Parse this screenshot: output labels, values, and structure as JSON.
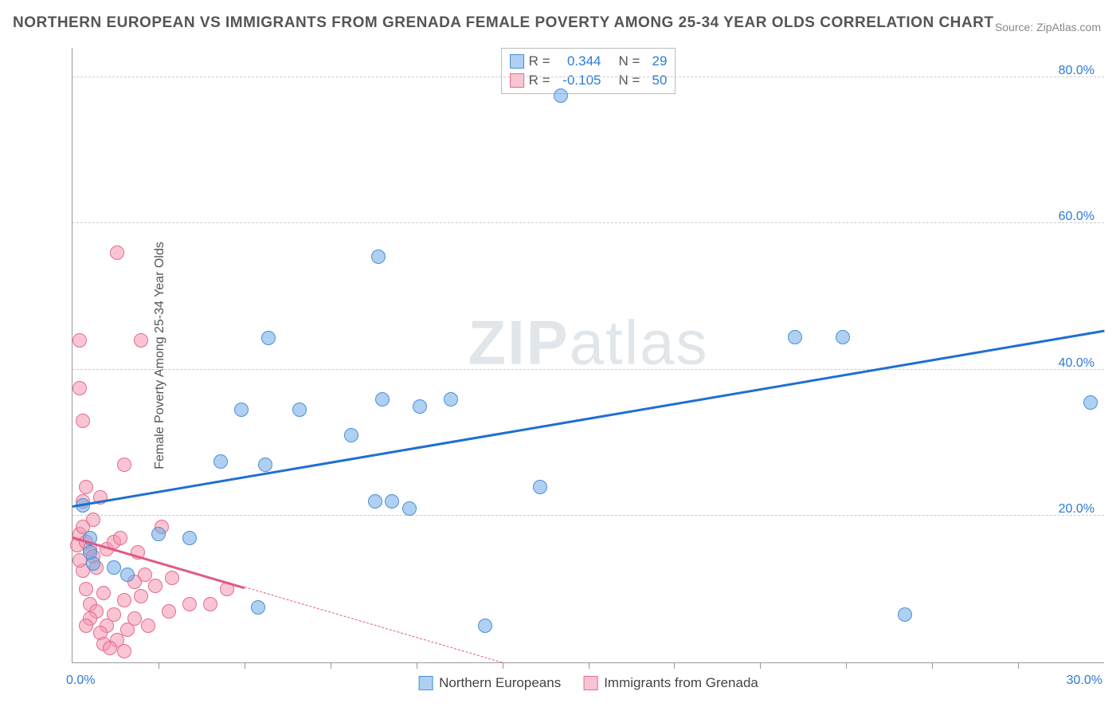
{
  "title": "NORTHERN EUROPEAN VS IMMIGRANTS FROM GRENADA FEMALE POVERTY AMONG 25-34 YEAR OLDS CORRELATION CHART",
  "source_label": "Source: ZipAtlas.com",
  "ylabel": "Female Poverty Among 25-34 Year Olds",
  "watermark": {
    "bold": "ZIP",
    "rest": "atlas"
  },
  "axes": {
    "xmin": 0,
    "xmax": 30,
    "ymin": 0,
    "ymax": 84,
    "x_tick_label_left": "0.0%",
    "x_tick_label_right": "30.0%",
    "x_label_color": "#2b7bd6",
    "y_ticks": [
      {
        "value": 20,
        "label": "20.0%"
      },
      {
        "value": 40,
        "label": "40.0%"
      },
      {
        "value": 60,
        "label": "60.0%"
      },
      {
        "value": 80,
        "label": "80.0%"
      }
    ],
    "y_label_color": "#2b7bd6",
    "grid_color": "#cccccc",
    "x_minor_ticks": [
      2.5,
      5,
      7.5,
      10,
      12.5,
      15,
      17.5,
      20,
      22.5,
      25,
      27.5
    ]
  },
  "series": {
    "blue": {
      "name": "Northern Europeans",
      "fill": "rgba(110,170,230,0.55)",
      "stroke": "#4a90d9",
      "marker_radius": 9,
      "r_label": "R =",
      "r_value": "0.344",
      "n_label": "N =",
      "n_value": "29",
      "trend": {
        "x1": 0,
        "y1": 21.5,
        "x2": 30,
        "y2": 45.5,
        "color": "#1f6fd0",
        "width": 3,
        "dashed_from_x": null
      },
      "points": [
        {
          "x": 14.2,
          "y": 77.5
        },
        {
          "x": 8.9,
          "y": 55.5
        },
        {
          "x": 21.0,
          "y": 44.5
        },
        {
          "x": 22.4,
          "y": 44.5
        },
        {
          "x": 29.6,
          "y": 35.5
        },
        {
          "x": 5.7,
          "y": 44.3
        },
        {
          "x": 9.0,
          "y": 36.0
        },
        {
          "x": 11.0,
          "y": 36.0
        },
        {
          "x": 10.1,
          "y": 35.0
        },
        {
          "x": 8.1,
          "y": 31.0
        },
        {
          "x": 4.9,
          "y": 34.5
        },
        {
          "x": 6.6,
          "y": 34.5
        },
        {
          "x": 4.3,
          "y": 27.5
        },
        {
          "x": 5.6,
          "y": 27.0
        },
        {
          "x": 13.6,
          "y": 24.0
        },
        {
          "x": 8.8,
          "y": 22.0
        },
        {
          "x": 9.3,
          "y": 22.0
        },
        {
          "x": 9.8,
          "y": 21.0
        },
        {
          "x": 24.2,
          "y": 6.5
        },
        {
          "x": 12.0,
          "y": 5.0
        },
        {
          "x": 5.4,
          "y": 7.5
        },
        {
          "x": 3.4,
          "y": 17.0
        },
        {
          "x": 2.5,
          "y": 17.5
        },
        {
          "x": 1.2,
          "y": 13.0
        },
        {
          "x": 1.6,
          "y": 12.0
        },
        {
          "x": 0.6,
          "y": 13.5
        },
        {
          "x": 0.5,
          "y": 15.0
        },
        {
          "x": 0.3,
          "y": 21.5
        },
        {
          "x": 0.5,
          "y": 17.0
        }
      ]
    },
    "pink": {
      "name": "Immigrants from Grenada",
      "fill": "rgba(245,150,175,0.55)",
      "stroke": "#e26b8f",
      "marker_radius": 9,
      "r_label": "R =",
      "r_value": "-0.105",
      "n_label": "N =",
      "n_value": "50",
      "trend": {
        "x1": 0,
        "y1": 17.2,
        "x2": 12.5,
        "y2": 0,
        "color": "#e05a82",
        "width": 3,
        "dashed_from_x": 5.0
      },
      "points": [
        {
          "x": 1.3,
          "y": 56.0
        },
        {
          "x": 0.2,
          "y": 44.0
        },
        {
          "x": 2.0,
          "y": 44.0
        },
        {
          "x": 0.2,
          "y": 37.5
        },
        {
          "x": 0.3,
          "y": 33.0
        },
        {
          "x": 1.5,
          "y": 27.0
        },
        {
          "x": 0.4,
          "y": 24.0
        },
        {
          "x": 0.8,
          "y": 22.5
        },
        {
          "x": 0.3,
          "y": 22.0
        },
        {
          "x": 0.6,
          "y": 19.5
        },
        {
          "x": 2.6,
          "y": 18.5
        },
        {
          "x": 4.5,
          "y": 10.0
        },
        {
          "x": 4.0,
          "y": 8.0
        },
        {
          "x": 3.4,
          "y": 8.0
        },
        {
          "x": 2.8,
          "y": 7.0
        },
        {
          "x": 2.0,
          "y": 9.0
        },
        {
          "x": 1.8,
          "y": 11.0
        },
        {
          "x": 1.5,
          "y": 8.5
        },
        {
          "x": 1.2,
          "y": 6.5
        },
        {
          "x": 1.0,
          "y": 5.0
        },
        {
          "x": 0.8,
          "y": 4.0
        },
        {
          "x": 0.9,
          "y": 2.5
        },
        {
          "x": 1.3,
          "y": 3.0
        },
        {
          "x": 1.6,
          "y": 4.5
        },
        {
          "x": 0.5,
          "y": 8.0
        },
        {
          "x": 0.4,
          "y": 10.0
        },
        {
          "x": 0.3,
          "y": 12.5
        },
        {
          "x": 0.2,
          "y": 14.0
        },
        {
          "x": 0.15,
          "y": 16.0
        },
        {
          "x": 0.2,
          "y": 17.5
        },
        {
          "x": 0.3,
          "y": 18.5
        },
        {
          "x": 0.4,
          "y": 16.5
        },
        {
          "x": 0.5,
          "y": 15.5
        },
        {
          "x": 0.6,
          "y": 14.5
        },
        {
          "x": 0.7,
          "y": 13.0
        },
        {
          "x": 1.0,
          "y": 15.5
        },
        {
          "x": 1.2,
          "y": 16.5
        },
        {
          "x": 1.4,
          "y": 17.0
        },
        {
          "x": 1.9,
          "y": 15.0
        },
        {
          "x": 2.1,
          "y": 12.0
        },
        {
          "x": 2.4,
          "y": 10.5
        },
        {
          "x": 0.9,
          "y": 9.5
        },
        {
          "x": 0.7,
          "y": 7.0
        },
        {
          "x": 0.5,
          "y": 6.0
        },
        {
          "x": 0.4,
          "y": 5.0
        },
        {
          "x": 1.1,
          "y": 2.0
        },
        {
          "x": 1.5,
          "y": 1.5
        },
        {
          "x": 1.8,
          "y": 6.0
        },
        {
          "x": 2.2,
          "y": 5.0
        },
        {
          "x": 2.9,
          "y": 11.5
        }
      ]
    }
  }
}
